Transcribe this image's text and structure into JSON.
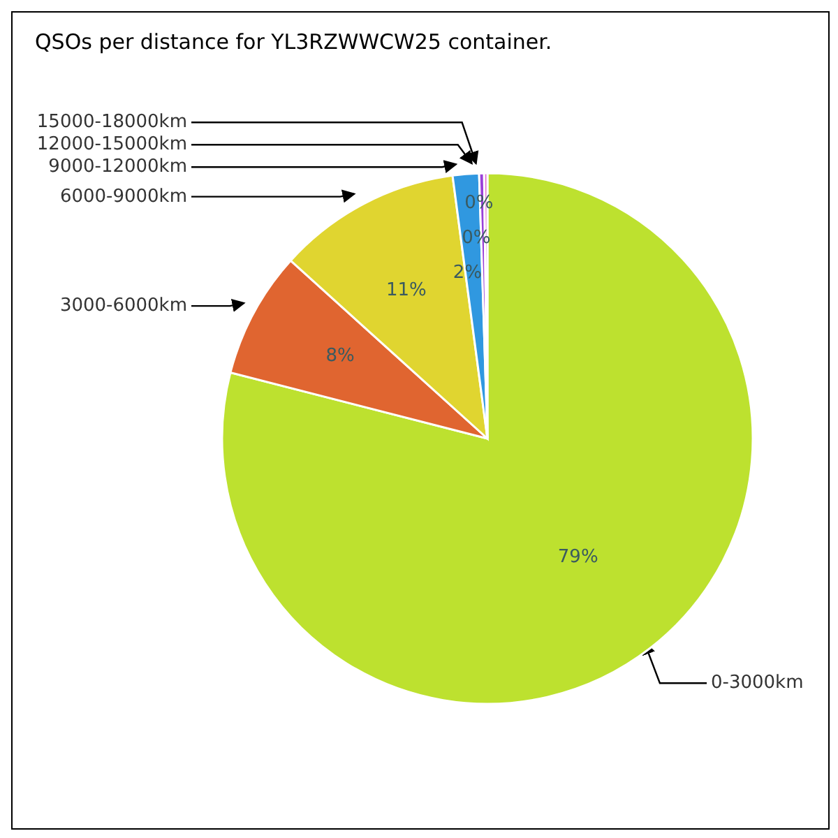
{
  "chart_data": {
    "type": "pie",
    "title": "QSOs per distance for YL3RZWWCW25 container.",
    "categories": [
      "0-3000km",
      "3000-6000km",
      "6000-9000km",
      "9000-12000km",
      "12000-15000km",
      "15000-18000km"
    ],
    "values": [
      79,
      7.7,
      11.2,
      1.6,
      0.3,
      0.2
    ],
    "colors": [
      "#bde12f",
      "#e06530",
      "#e0d530",
      "#3098e0",
      "#9a40d8",
      "#e070d0"
    ],
    "value_labels": [
      "79%",
      "8%",
      "11%",
      "2%",
      "0%",
      "0%"
    ]
  }
}
